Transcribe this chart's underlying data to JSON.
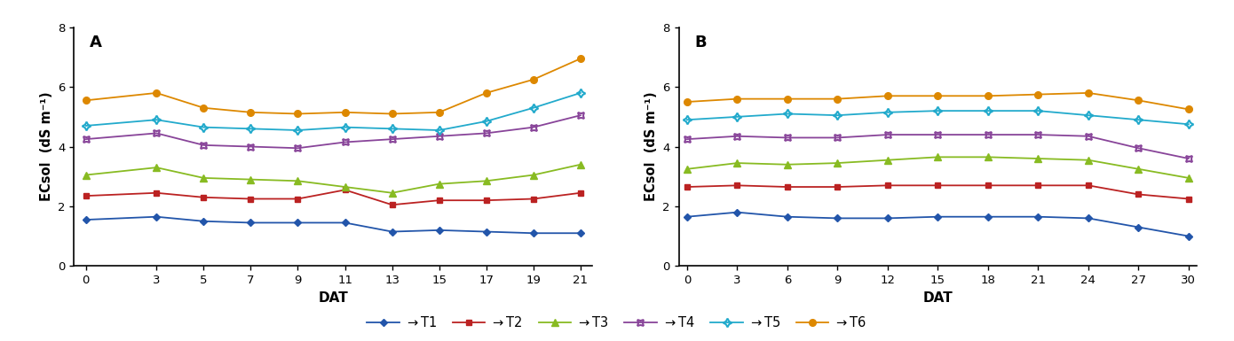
{
  "panel_A": {
    "label": "A",
    "x": [
      0,
      3,
      5,
      7,
      9,
      11,
      13,
      15,
      17,
      19,
      21
    ],
    "T1": [
      1.55,
      1.65,
      1.5,
      1.45,
      1.45,
      1.45,
      1.15,
      1.2,
      1.15,
      1.1,
      1.1
    ],
    "T2": [
      2.35,
      2.45,
      2.3,
      2.25,
      2.25,
      2.55,
      2.05,
      2.2,
      2.2,
      2.25,
      2.45
    ],
    "T3": [
      3.05,
      3.3,
      2.95,
      2.9,
      2.85,
      2.65,
      2.45,
      2.75,
      2.85,
      3.05,
      3.4
    ],
    "T4": [
      4.25,
      4.45,
      4.05,
      4.0,
      3.95,
      4.15,
      4.25,
      4.35,
      4.45,
      4.65,
      5.05
    ],
    "T5": [
      4.7,
      4.9,
      4.65,
      4.6,
      4.55,
      4.65,
      4.6,
      4.55,
      4.85,
      5.3,
      5.8
    ],
    "T6": [
      5.55,
      5.8,
      5.3,
      5.15,
      5.1,
      5.15,
      5.1,
      5.15,
      5.8,
      6.25,
      6.95
    ]
  },
  "panel_B": {
    "label": "B",
    "x": [
      0,
      3,
      6,
      9,
      12,
      15,
      18,
      21,
      24,
      27,
      30
    ],
    "T1": [
      1.65,
      1.8,
      1.65,
      1.6,
      1.6,
      1.65,
      1.65,
      1.65,
      1.6,
      1.3,
      1.0
    ],
    "T2": [
      2.65,
      2.7,
      2.65,
      2.65,
      2.7,
      2.7,
      2.7,
      2.7,
      2.7,
      2.4,
      2.25
    ],
    "T3": [
      3.25,
      3.45,
      3.4,
      3.45,
      3.55,
      3.65,
      3.65,
      3.6,
      3.55,
      3.25,
      2.95
    ],
    "T4": [
      4.25,
      4.35,
      4.3,
      4.3,
      4.4,
      4.4,
      4.4,
      4.4,
      4.35,
      3.95,
      3.6
    ],
    "T5": [
      4.9,
      5.0,
      5.1,
      5.05,
      5.15,
      5.2,
      5.2,
      5.2,
      5.05,
      4.9,
      4.75
    ],
    "T6": [
      5.5,
      5.6,
      5.6,
      5.6,
      5.7,
      5.7,
      5.7,
      5.75,
      5.8,
      5.55,
      5.25
    ]
  },
  "colors": {
    "T1": "#2255aa",
    "T2": "#bb2222",
    "T3": "#88bb22",
    "T4": "#884499",
    "T5": "#22aacc",
    "T6": "#dd8800"
  },
  "ylabel": "ECsol  (dS m⁻¹)",
  "xlabel": "DAT",
  "ylim": [
    0,
    8
  ],
  "yticks": [
    0,
    2,
    4,
    6,
    8
  ],
  "figsize": [
    13.9,
    3.85
  ],
  "dpi": 100
}
